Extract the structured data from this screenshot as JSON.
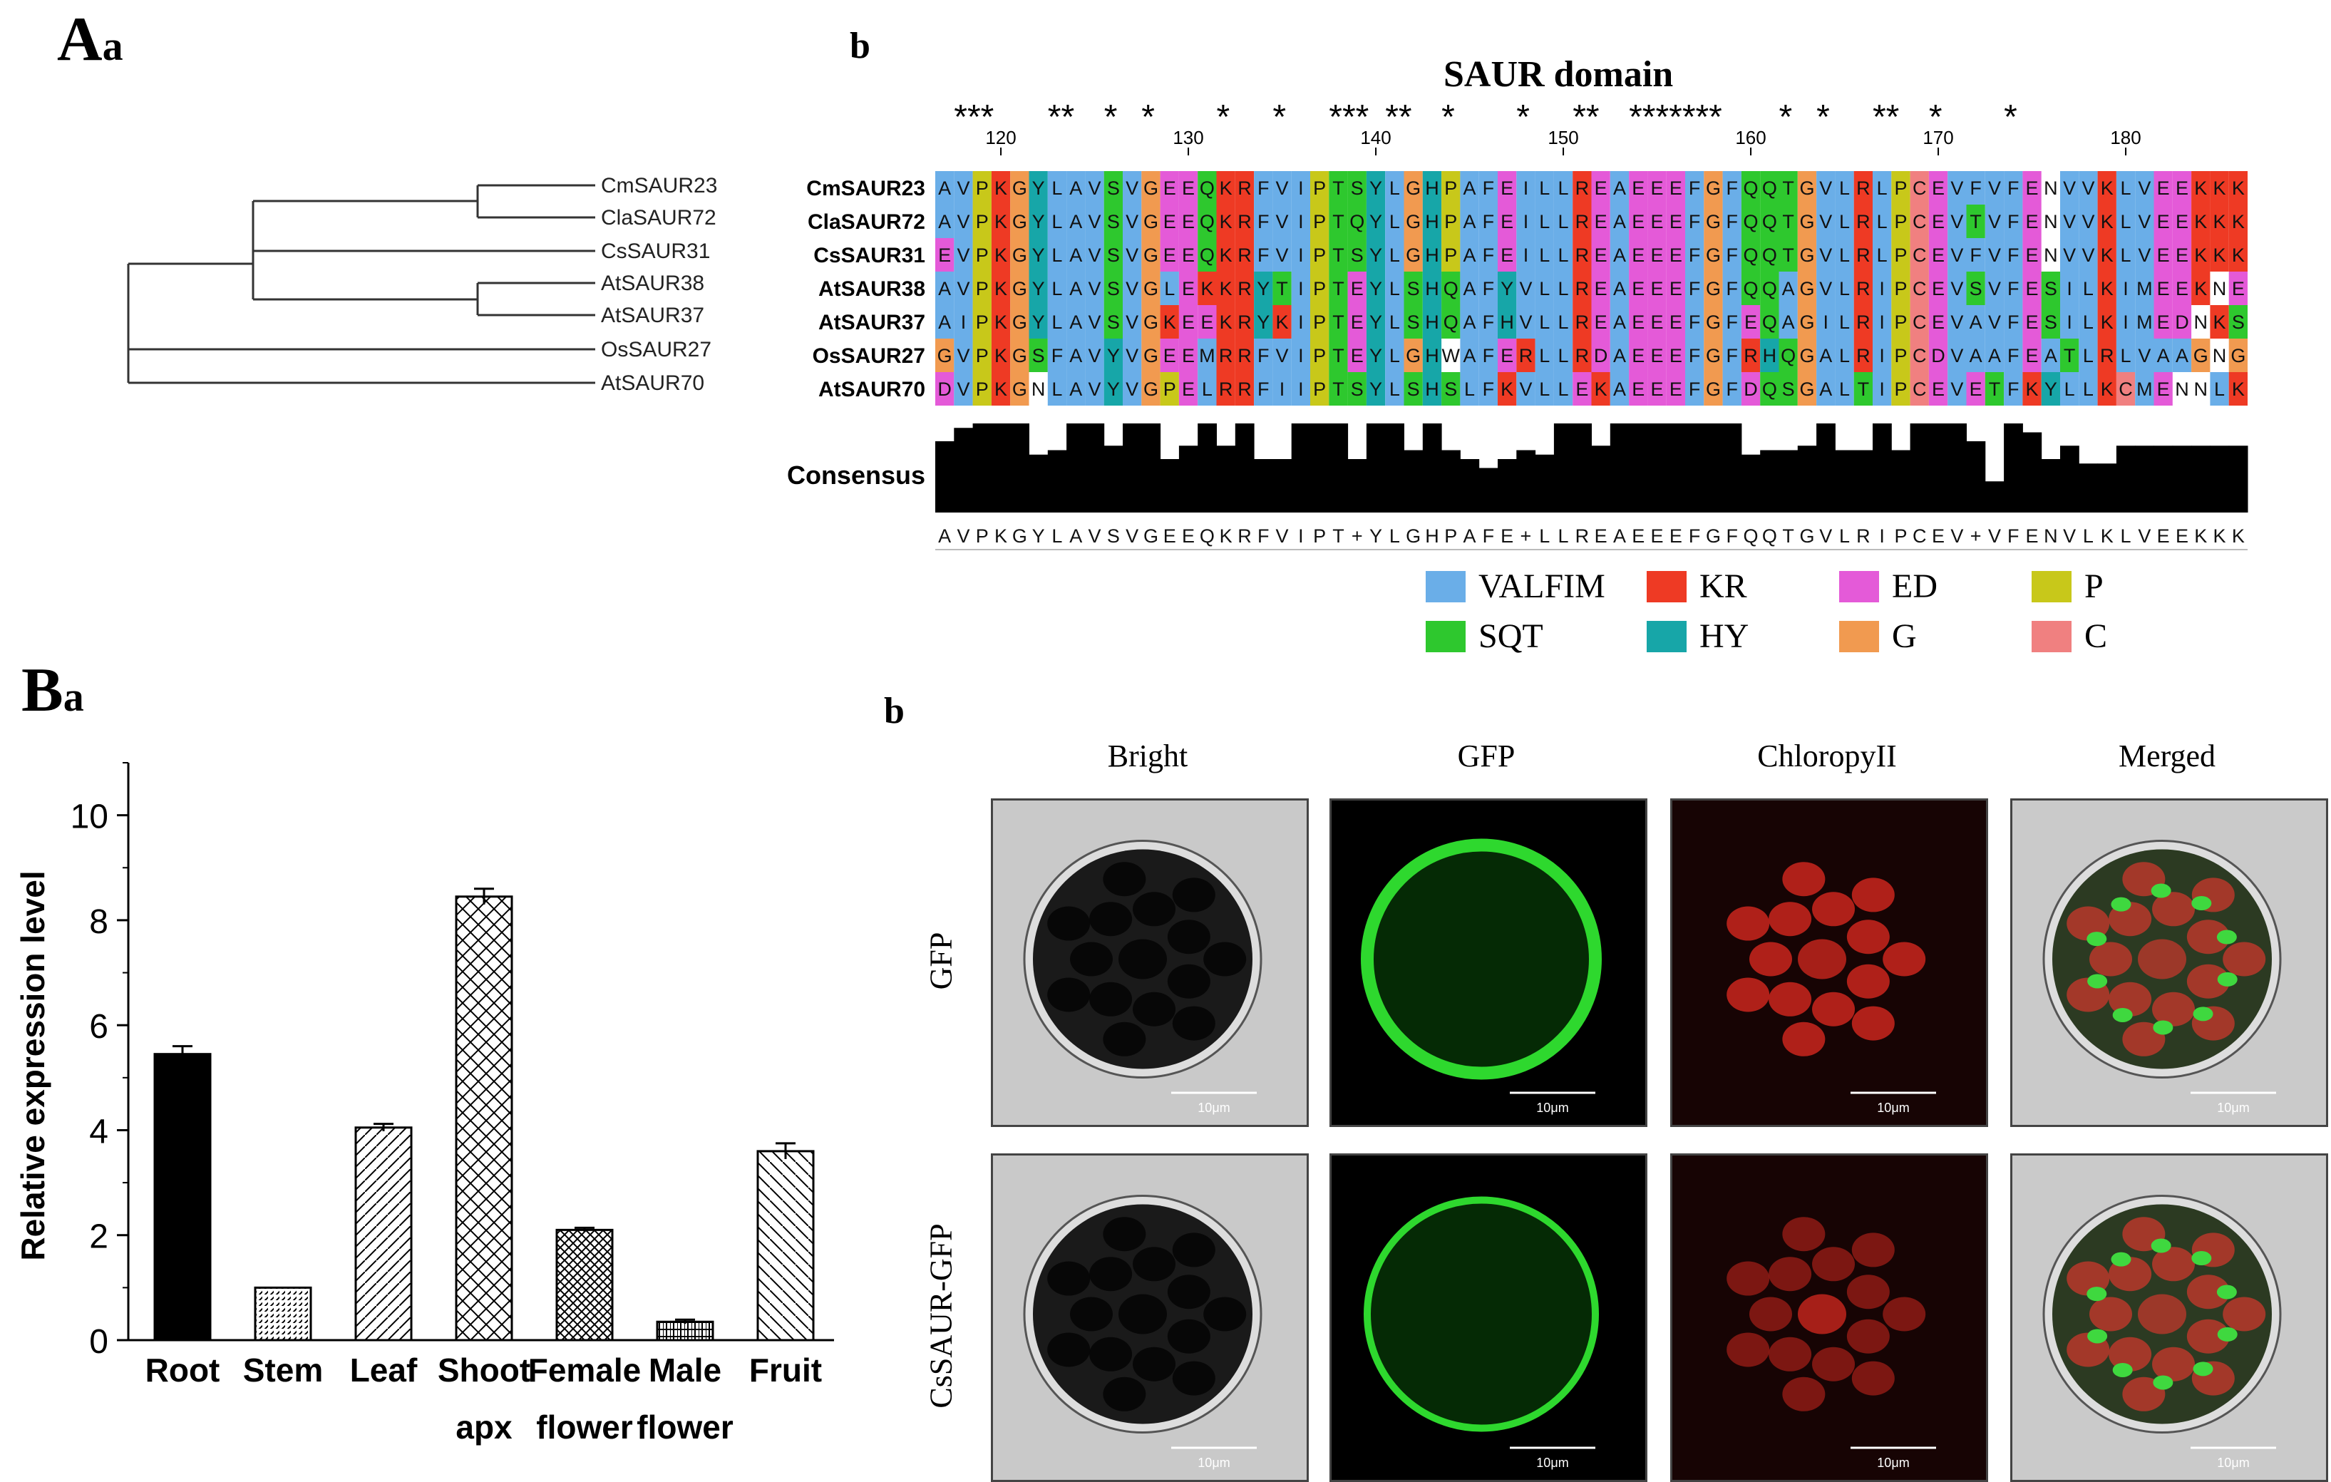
{
  "panel_labels": {
    "A": "A",
    "A_a": "a",
    "A_b": "b",
    "B": "B",
    "B_a": "a",
    "B_b": "b"
  },
  "tree": {
    "taxa": [
      "CmSAUR23",
      "ClaSAUR72",
      "CsSAUR31",
      "AtSAUR38",
      "AtSAUR37",
      "OsSAUR27",
      "AtSAUR70"
    ]
  },
  "alignment": {
    "title": "SAUR domain",
    "ruler": [
      "120",
      "130",
      "140",
      "150",
      "160",
      "170",
      "180"
    ],
    "stars": [
      "***",
      "**",
      "*",
      "*",
      "*",
      "*",
      "***",
      "**",
      "*",
      "*",
      "**",
      "*******",
      "*",
      "*",
      "**",
      "*",
      "*"
    ],
    "names": [
      "CmSAUR23",
      "ClaSAUR72",
      "CsSAUR31",
      "AtSAUR38",
      "AtSAUR37",
      "OsSAUR27",
      "AtSAUR70"
    ],
    "sequences": [
      "AVPKGYLAVSVGEEQKRFVIPTSYLGHPAFEILLREAEEEFGFQQTGVLRLPCEVFVFENVVKLVEEKKK",
      "AVPKGYLAVSVGEEQKRFVIPTQYLGHPAFEILLREAEEEFGFQQTGVLRLPCEVTVFENVVKLVEEKKK",
      "EVPKGYLAVSVGEEQKRFVIPTSYLGHPAFEILLREAEEEFGFQQTGVLRLPCEVFVFENVVKLVEEKKK",
      "AVPKGYLAVSVGLEKKRYTIPTEYLSHQAFYVLLREAEEEFGFQQAGVLRIPCEVSVFESILKIMEEKNE",
      "AIPKGYLAVSVGKEEKRYKIPTEYLSHQAFHVLLREAEEEFGFEQAGILRIPCEVAVFESILKIMEDNKS",
      "GVPKGSFAVYVGEEMRRFVIPTEYLGHWAFERLLRDAEEEFGFRHQGALRIPCDVAAFEATLRLVAAGNG",
      "DVPKGNLAVYVGPELRRFIIPTSYLSHSLFKVLLEKAEEEFGFDQSGALTIPCEVETFKYLLKCMENNLK"
    ],
    "consensus_label": "Consensus",
    "consensus_seq": "AVPKGYLAVSVGEEQKRFVIPT+YLGHPAFE+LLREAEEEFGFQQTGVLRIPCEV+VFENVLKLVEEKKK",
    "consensus_heights": [
      0.8,
      0.95,
      1,
      1,
      1,
      0.65,
      0.7,
      1,
      1,
      0.75,
      1,
      1,
      0.6,
      0.75,
      1,
      0.75,
      1,
      0.6,
      0.6,
      1,
      1,
      1,
      0.6,
      1,
      1,
      0.7,
      1,
      0.7,
      0.6,
      0.5,
      0.6,
      0.7,
      0.65,
      1,
      1,
      0.75,
      1,
      1,
      1,
      1,
      1,
      1,
      1,
      0.65,
      0.7,
      0.7,
      0.75,
      1,
      0.7,
      0.7,
      1,
      0.7,
      1,
      1,
      1,
      0.8,
      0.35,
      1,
      0.9,
      0.6,
      0.75,
      0.55,
      0.55,
      0.75,
      0.75,
      0.75,
      0.75,
      0.75,
      0.75,
      0.75
    ]
  },
  "legend": [
    {
      "label": "VALFIM",
      "color": "#6aaee8"
    },
    {
      "label": "KR",
      "color": "#ee3a24"
    },
    {
      "label": "ED",
      "color": "#e45ad8"
    },
    {
      "label": "P",
      "color": "#c8c81a"
    },
    {
      "label": "SQT",
      "color": "#2ec82e"
    },
    {
      "label": "HY",
      "color": "#17a6a8"
    },
    {
      "label": "G",
      "color": "#f19a50"
    },
    {
      "label": "C",
      "color": "#f08080"
    }
  ],
  "chart_data": {
    "type": "bar",
    "categories": [
      "Root",
      "Stem",
      "Leaf",
      "Shoot apx",
      "Female flower",
      "Male flower",
      "Fruit"
    ],
    "category_lines": [
      [
        "Root"
      ],
      [
        "Stem"
      ],
      [
        "Leaf"
      ],
      [
        "Shoot",
        "apx"
      ],
      [
        "Female",
        "flower"
      ],
      [
        "Male",
        "flower"
      ],
      [
        "Fruit"
      ]
    ],
    "values": [
      5.45,
      1.0,
      4.05,
      8.45,
      2.1,
      0.35,
      3.6
    ],
    "errors": [
      0.15,
      0.0,
      0.07,
      0.15,
      0.04,
      0.04,
      0.15
    ],
    "ylabel": "Relative expression level",
    "ylim": [
      0,
      11
    ],
    "yticks": [
      "0",
      "2",
      "4",
      "6",
      "8",
      "10"
    ],
    "ytick_values": [
      0,
      2,
      4,
      6,
      8,
      10
    ]
  },
  "micro": {
    "columns": [
      "Bright",
      "GFP",
      "ChloropyII",
      "Merged"
    ],
    "rows": [
      "GFP",
      "CsSAUR-GFP"
    ],
    "scale_label": "10μm"
  }
}
